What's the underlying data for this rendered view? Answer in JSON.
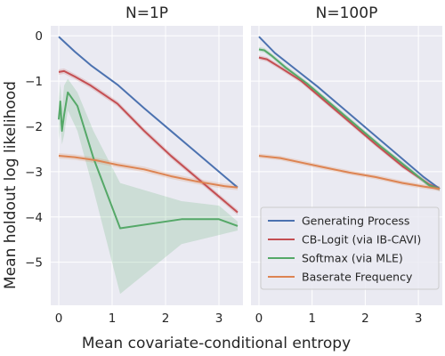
{
  "chart_data": {
    "type": "line",
    "ylabel": "Mean holdout log likelihood",
    "xlabel": "Mean covariate-conditional entropy",
    "xlim": [
      -0.15,
      3.45
    ],
    "ylim": [
      -5.95,
      0.22
    ],
    "xticks": [
      0,
      1,
      2,
      3
    ],
    "yticks": [
      0,
      -1,
      -2,
      -3,
      -4,
      -5
    ],
    "grid": true,
    "legend_position": "bottom-right of right panel",
    "colors": {
      "generating": "#4c72b0",
      "cblogit": "#c44e52",
      "softmax": "#55a868",
      "baserate": "#dd8452"
    },
    "legend": [
      {
        "key": "generating",
        "label": "Generating Process"
      },
      {
        "key": "cblogit",
        "label": "CB-Logit (via IB-CAVI)"
      },
      {
        "key": "softmax",
        "label": "Softmax (via MLE)"
      },
      {
        "key": "baserate",
        "label": "Baserate Frequency"
      }
    ],
    "panels": [
      {
        "title": "N=1P",
        "series": [
          {
            "key": "generating",
            "x": [
              0.0,
              0.3,
              0.6,
              1.1,
              1.6,
              2.1,
              2.6,
              3.1,
              3.35
            ],
            "y": [
              -0.02,
              -0.35,
              -0.65,
              -1.08,
              -1.6,
              -2.1,
              -2.6,
              -3.1,
              -3.35
            ]
          },
          {
            "key": "cblogit",
            "x": [
              0.0,
              0.1,
              0.3,
              0.6,
              1.1,
              1.6,
              2.1,
              2.6,
              3.1,
              3.35
            ],
            "y": [
              -0.8,
              -0.78,
              -0.9,
              -1.1,
              -1.5,
              -2.1,
              -2.65,
              -3.15,
              -3.65,
              -3.9
            ],
            "band_width": 0.06
          },
          {
            "key": "softmax",
            "x": [
              0.0,
              0.03,
              0.06,
              0.1,
              0.17,
              0.35,
              0.65,
              1.15,
              2.3,
              3.0,
              3.35
            ],
            "y": [
              -1.85,
              -1.45,
              -2.1,
              -1.75,
              -1.25,
              -1.55,
              -2.7,
              -4.25,
              -4.05,
              -4.05,
              -4.2
            ],
            "lower": [
              -2.3,
              -1.95,
              -2.4,
              -2.2,
              -1.65,
              -2.1,
              -3.4,
              -5.7,
              -4.6,
              -4.4,
              -4.3
            ],
            "upper": [
              -1.4,
              -1.05,
              -1.6,
              -1.1,
              -0.95,
              -1.25,
              -2.1,
              -3.25,
              -3.65,
              -3.75,
              -4.1
            ]
          },
          {
            "key": "baserate",
            "x": [
              0.0,
              0.3,
              0.7,
              1.1,
              1.6,
              2.1,
              2.6,
              3.1,
              3.35
            ],
            "y": [
              -2.65,
              -2.68,
              -2.75,
              -2.85,
              -2.95,
              -3.1,
              -3.22,
              -3.32,
              -3.35
            ],
            "band_width": 0.06
          }
        ]
      },
      {
        "title": "N=100P",
        "series": [
          {
            "key": "generating",
            "x": [
              0.0,
              0.3,
              0.7,
              1.1,
              1.6,
              2.1,
              2.6,
              3.1,
              3.4
            ],
            "y": [
              -0.02,
              -0.38,
              -0.75,
              -1.12,
              -1.62,
              -2.12,
              -2.62,
              -3.12,
              -3.38
            ]
          },
          {
            "key": "cblogit",
            "x": [
              0.0,
              0.15,
              0.4,
              0.8,
              1.2,
              1.7,
              2.2,
              2.7,
              3.2,
              3.4
            ],
            "y": [
              -0.48,
              -0.52,
              -0.7,
              -1.0,
              -1.4,
              -1.9,
              -2.4,
              -2.88,
              -3.28,
              -3.38
            ],
            "band_width": 0.05
          },
          {
            "key": "softmax",
            "x": [
              0.0,
              0.1,
              0.25,
              0.5,
              0.9,
              1.3,
              1.8,
              2.3,
              2.8,
              3.2,
              3.4
            ],
            "y": [
              -0.3,
              -0.32,
              -0.45,
              -0.7,
              -1.05,
              -1.45,
              -1.95,
              -2.45,
              -2.92,
              -3.3,
              -3.38
            ],
            "band_width": 0.05
          },
          {
            "key": "baserate",
            "x": [
              0.0,
              0.4,
              0.8,
              1.2,
              1.7,
              2.2,
              2.7,
              3.1,
              3.4
            ],
            "y": [
              -2.65,
              -2.7,
              -2.8,
              -2.9,
              -3.02,
              -3.12,
              -3.25,
              -3.33,
              -3.38
            ],
            "band_width": 0.05
          }
        ]
      }
    ]
  }
}
